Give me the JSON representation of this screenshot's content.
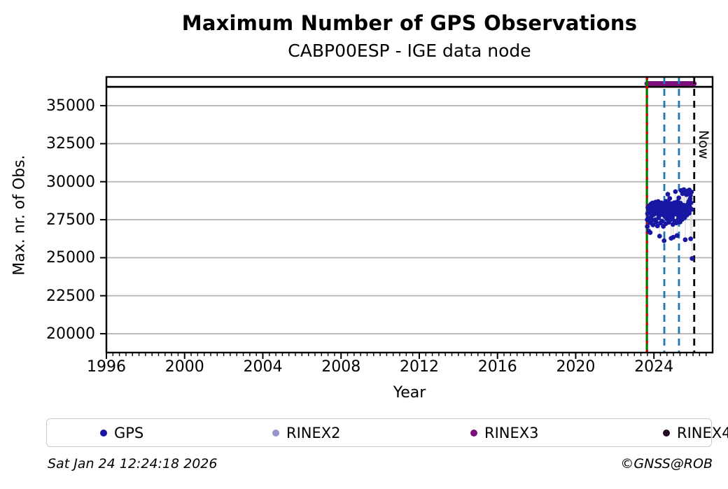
{
  "chart_data": {
    "type": "scatter",
    "title": "Maximum Number of GPS Observations",
    "subtitle": "CABP00ESP - IGE data node",
    "xlabel": "Year",
    "ylabel": "Max. nr. of Obs.",
    "xlim": [
      1996,
      2027
    ],
    "ylim": [
      18760,
      36890
    ],
    "xticks": [
      1996,
      2000,
      2004,
      2008,
      2012,
      2016,
      2020,
      2024
    ],
    "yticks": [
      20000,
      22500,
      25000,
      27500,
      30000,
      32500,
      35000
    ],
    "x_minor_tick_step_years": 0.33333,
    "grid": "horizontal-only",
    "grid_color": "#b4b4b4",
    "frame_color": "#000000",
    "hline": {
      "value": 36240,
      "color": "#000000"
    },
    "vlines": [
      {
        "x": 2023.64,
        "style": "solid",
        "color": "#007d00",
        "overlay_dash_color": "#d40000"
      },
      {
        "x": 2024.53,
        "style": "dashed",
        "color": "#1f77b4"
      },
      {
        "x": 2025.28,
        "style": "dashed",
        "color": "#1f77b4"
      },
      {
        "x": 2026.06,
        "style": "dashed",
        "color": "#000000",
        "label": "Now"
      }
    ],
    "now_label": "Now",
    "series": [
      {
        "name": "GPS",
        "type": "scatter",
        "color": "#1717a3",
        "connector_color": "#dcdcdc",
        "points": [
          [
            2023.655,
            27500
          ],
          [
            2023.66,
            27050
          ],
          [
            2023.67,
            27900
          ],
          [
            2023.69,
            28300
          ],
          [
            2023.71,
            27600
          ],
          [
            2023.73,
            28150
          ],
          [
            2023.74,
            26750
          ],
          [
            2023.76,
            28420
          ],
          [
            2023.78,
            27980
          ],
          [
            2023.8,
            27310
          ],
          [
            2023.81,
            26650
          ],
          [
            2023.83,
            28060
          ],
          [
            2023.85,
            28530
          ],
          [
            2023.87,
            27720
          ],
          [
            2023.88,
            28270
          ],
          [
            2023.9,
            27450
          ],
          [
            2023.92,
            28600
          ],
          [
            2023.94,
            28010
          ],
          [
            2023.95,
            27160
          ],
          [
            2023.97,
            28380
          ],
          [
            2023.99,
            27840
          ],
          [
            2024.01,
            28550
          ],
          [
            2024.03,
            27980
          ],
          [
            2024.04,
            28120
          ],
          [
            2024.06,
            27500
          ],
          [
            2024.08,
            28660
          ],
          [
            2024.1,
            28230
          ],
          [
            2024.11,
            27350
          ],
          [
            2024.13,
            28040
          ],
          [
            2024.15,
            28490
          ],
          [
            2024.17,
            27900
          ],
          [
            2024.18,
            27090
          ],
          [
            2024.2,
            28310
          ],
          [
            2024.22,
            28700
          ],
          [
            2024.24,
            27620
          ],
          [
            2024.25,
            28160
          ],
          [
            2024.27,
            27770
          ],
          [
            2024.29,
            26420
          ],
          [
            2024.31,
            28090
          ],
          [
            2024.32,
            28520
          ],
          [
            2024.34,
            27280
          ],
          [
            2024.36,
            28350
          ],
          [
            2024.38,
            27940
          ],
          [
            2024.39,
            28610
          ],
          [
            2024.41,
            27410
          ],
          [
            2024.43,
            28190
          ],
          [
            2024.45,
            27830
          ],
          [
            2024.46,
            28470
          ],
          [
            2024.48,
            27060
          ],
          [
            2024.5,
            28260
          ],
          [
            2024.52,
            26120
          ],
          [
            2024.53,
            28030
          ],
          [
            2024.55,
            28580
          ],
          [
            2024.57,
            27690
          ],
          [
            2024.59,
            28340
          ],
          [
            2024.6,
            27230
          ],
          [
            2024.62,
            28710
          ],
          [
            2024.64,
            27870
          ],
          [
            2024.66,
            28430
          ],
          [
            2024.67,
            27550
          ],
          [
            2024.69,
            28150
          ],
          [
            2024.71,
            29180
          ],
          [
            2024.73,
            28020
          ],
          [
            2024.74,
            28640
          ],
          [
            2024.76,
            27330
          ],
          [
            2024.78,
            28240
          ],
          [
            2024.8,
            27760
          ],
          [
            2024.81,
            28900
          ],
          [
            2024.83,
            27480
          ],
          [
            2024.85,
            28370
          ],
          [
            2024.87,
            27910
          ],
          [
            2024.88,
            26280
          ],
          [
            2024.9,
            28560
          ],
          [
            2024.92,
            28080
          ],
          [
            2024.94,
            27640
          ],
          [
            2024.95,
            28300
          ],
          [
            2024.97,
            27190
          ],
          [
            2024.99,
            26350
          ],
          [
            2025.01,
            28460
          ],
          [
            2025.03,
            27850
          ],
          [
            2025.04,
            28620
          ],
          [
            2025.06,
            27400
          ],
          [
            2025.08,
            28210
          ],
          [
            2025.1,
            29350
          ],
          [
            2025.11,
            27970
          ],
          [
            2025.13,
            28520
          ],
          [
            2025.15,
            27290
          ],
          [
            2025.17,
            28110
          ],
          [
            2025.18,
            26460
          ],
          [
            2025.2,
            28680
          ],
          [
            2025.22,
            27810
          ],
          [
            2025.24,
            28390
          ],
          [
            2025.25,
            27560
          ],
          [
            2025.27,
            28940
          ],
          [
            2025.29,
            28170
          ],
          [
            2025.31,
            27700
          ],
          [
            2025.32,
            28480
          ],
          [
            2025.34,
            27350
          ],
          [
            2025.36,
            28590
          ],
          [
            2025.38,
            28020
          ],
          [
            2025.39,
            29420
          ],
          [
            2025.41,
            27880
          ],
          [
            2025.43,
            28330
          ],
          [
            2025.45,
            27520
          ],
          [
            2025.46,
            29210
          ],
          [
            2025.48,
            28100
          ],
          [
            2025.5,
            27740
          ],
          [
            2025.52,
            28450
          ],
          [
            2025.53,
            29480
          ],
          [
            2025.55,
            28230
          ],
          [
            2025.57,
            27630
          ],
          [
            2025.59,
            29300
          ],
          [
            2025.6,
            26180
          ],
          [
            2025.62,
            28410
          ],
          [
            2025.64,
            27950
          ],
          [
            2025.66,
            29150
          ],
          [
            2025.67,
            28280
          ],
          [
            2025.69,
            27810
          ],
          [
            2025.71,
            29390
          ],
          [
            2025.73,
            28520
          ],
          [
            2025.74,
            28060
          ],
          [
            2025.76,
            29240
          ],
          [
            2025.78,
            28700
          ],
          [
            2025.8,
            27930
          ],
          [
            2025.81,
            29460
          ],
          [
            2025.83,
            28350
          ],
          [
            2025.85,
            28870
          ],
          [
            2025.87,
            29100
          ],
          [
            2025.88,
            26240
          ],
          [
            2025.9,
            28610
          ],
          [
            2025.92,
            29320
          ],
          [
            2025.93,
            28180
          ],
          [
            2025.95,
            24950
          ]
        ]
      },
      {
        "name": "RINEX2",
        "type": "scatter",
        "color": "#9793cb",
        "points": []
      },
      {
        "name": "RINEX3",
        "type": "band",
        "color": "#7b0f7b",
        "x_start": 2023.64,
        "x_end": 2026.06,
        "value": 36450
      },
      {
        "name": "RINEX4",
        "type": "scatter",
        "color": "#250a25",
        "points": []
      }
    ]
  },
  "legend": {
    "items": [
      {
        "label": "GPS",
        "color": "#1717a3"
      },
      {
        "label": "RINEX2",
        "color": "#9793cb"
      },
      {
        "label": "RINEX3",
        "color": "#7b0f7b"
      },
      {
        "label": "RINEX4",
        "color": "#250a25"
      }
    ]
  },
  "footer": {
    "timestamp": "Sat Jan 24 12:24:18 2026",
    "credit": "©GNSS@ROB"
  }
}
